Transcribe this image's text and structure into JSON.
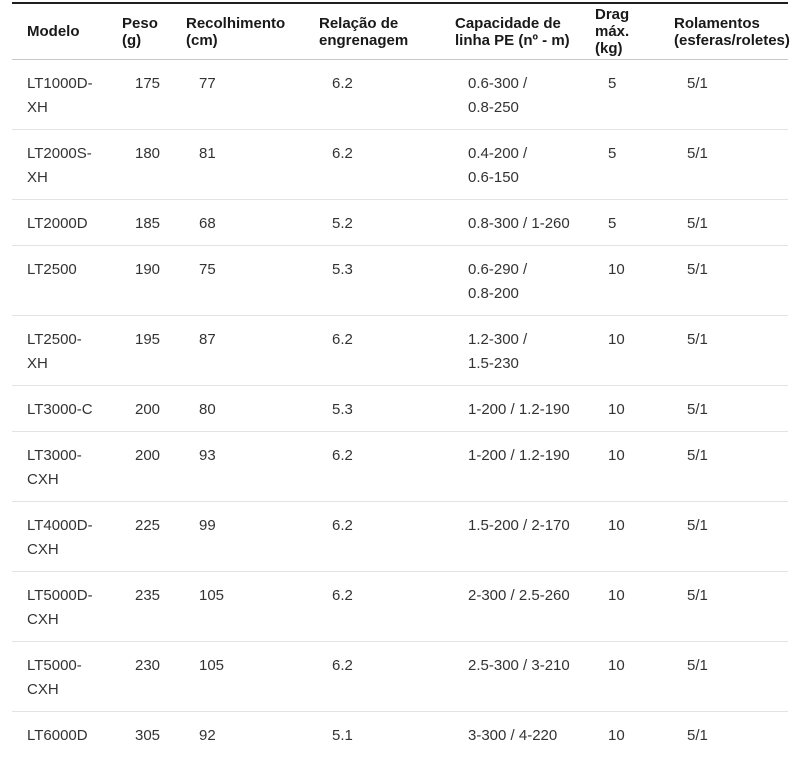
{
  "colors": {
    "background": "#ffffff",
    "top_border": "#1f1f1f",
    "header_divider": "#c9c9c9",
    "row_divider": "#e3e3e3",
    "header_text": "#191919",
    "body_text": "#333333"
  },
  "table": {
    "columns": [
      {
        "key": "modelo",
        "label": "Modelo"
      },
      {
        "key": "peso",
        "label": "Peso\n(g)"
      },
      {
        "key": "recolhimento",
        "label": "Recolhimento\n(cm)"
      },
      {
        "key": "relacao-engrenagem",
        "label": "Relação de\nengrenagem"
      },
      {
        "key": "capacidade-linha",
        "label": "Capacidade de\nlinha PE (nº - m)"
      },
      {
        "key": "drag-max",
        "label": "Drag\nmáx.\n(kg)"
      },
      {
        "key": "rolamentos",
        "label": "Rolamentos\n(esferas/roletes)"
      }
    ],
    "rows": [
      {
        "cells": [
          "LT1000D-\nXH",
          "175",
          "77",
          "6.2",
          "0.6-300 /\n0.8-250",
          "5",
          "5/1"
        ]
      },
      {
        "cells": [
          "LT2000S-\nXH",
          "180",
          "81",
          "6.2",
          "0.4-200 /\n0.6-150",
          "5",
          "5/1"
        ]
      },
      {
        "cells": [
          "LT2000D",
          "185",
          "68",
          "5.2",
          "0.8-300 / 1-260",
          "5",
          "5/1"
        ]
      },
      {
        "cells": [
          "LT2500",
          "190",
          "75",
          "5.3",
          "0.6-290 /\n0.8-200",
          "10",
          "5/1"
        ]
      },
      {
        "cells": [
          "LT2500-\nXH",
          "195",
          "87",
          "6.2",
          "1.2-300 /\n1.5-230",
          "10",
          "5/1"
        ]
      },
      {
        "cells": [
          "LT3000-C",
          "200",
          "80",
          "5.3",
          "1-200 / 1.2-190",
          "10",
          "5/1"
        ]
      },
      {
        "cells": [
          "LT3000-\nCXH",
          "200",
          "93",
          "6.2",
          "1-200 / 1.2-190",
          "10",
          "5/1"
        ]
      },
      {
        "cells": [
          "LT4000D-\nCXH",
          "225",
          "99",
          "6.2",
          "1.5-200 / 2-170",
          "10",
          "5/1"
        ]
      },
      {
        "cells": [
          "LT5000D-\nCXH",
          "235",
          "105",
          "6.2",
          "2-300 / 2.5-260",
          "10",
          "5/1"
        ]
      },
      {
        "cells": [
          "LT5000-\nCXH",
          "230",
          "105",
          "6.2",
          "2.5-300 / 3-210",
          "10",
          "5/1"
        ]
      },
      {
        "cells": [
          "LT6000D",
          "305",
          "92",
          "5.1",
          "3-300 / 4-220",
          "10",
          "5/1"
        ]
      }
    ]
  },
  "chart_data": {
    "type": "table",
    "title": "",
    "columns": [
      "Modelo",
      "Peso (g)",
      "Recolhimento (cm)",
      "Relação de engrenagem",
      "Capacidade de linha PE (nº - m)",
      "Drag máx. (kg)",
      "Rolamentos (esferas/roletes)"
    ],
    "rows": [
      [
        "LT1000D-XH",
        175,
        77,
        6.2,
        "0.6-300 / 0.8-250",
        5,
        "5/1"
      ],
      [
        "LT2000S-XH",
        180,
        81,
        6.2,
        "0.4-200 / 0.6-150",
        5,
        "5/1"
      ],
      [
        "LT2000D",
        185,
        68,
        5.2,
        "0.8-300 / 1-260",
        5,
        "5/1"
      ],
      [
        "LT2500",
        190,
        75,
        5.3,
        "0.6-290 / 0.8-200",
        10,
        "5/1"
      ],
      [
        "LT2500-XH",
        195,
        87,
        6.2,
        "1.2-300 / 1.5-230",
        10,
        "5/1"
      ],
      [
        "LT3000-C",
        200,
        80,
        5.3,
        "1-200 / 1.2-190",
        10,
        "5/1"
      ],
      [
        "LT3000-CXH",
        200,
        93,
        6.2,
        "1-200 / 1.2-190",
        10,
        "5/1"
      ],
      [
        "LT4000D-CXH",
        225,
        99,
        6.2,
        "1.5-200 / 2-170",
        10,
        "5/1"
      ],
      [
        "LT5000D-CXH",
        235,
        105,
        6.2,
        "2-300 / 2.5-260",
        10,
        "5/1"
      ],
      [
        "LT5000-CXH",
        230,
        105,
        6.2,
        "2.5-300 / 3-210",
        10,
        "5/1"
      ],
      [
        "LT6000D",
        305,
        92,
        5.1,
        "3-300 / 4-220",
        10,
        "5/1"
      ]
    ]
  }
}
